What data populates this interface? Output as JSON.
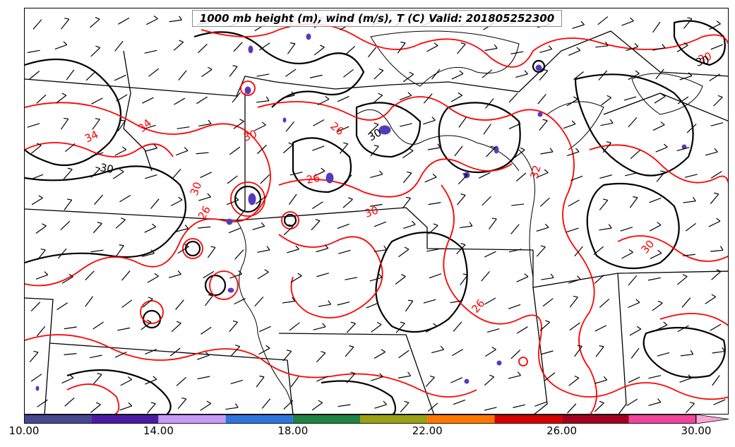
{
  "title": "1000 mb height (m), wind (m/s), T (C) Valid: 201805252300",
  "contour_labels": {
    "temperature": [
      "34",
      "34",
      "30",
      "30",
      "26",
      "26",
      "30",
      "26",
      "32",
      "30",
      "26",
      "30"
    ],
    "height": [
      "30",
      "30",
      "30"
    ]
  },
  "colors": {
    "height_contour": "#000000",
    "temperature_contour": "#ff0000",
    "boundaries": "#000000",
    "storm_cells": "#4b3fb5"
  },
  "colorbar": {
    "min": 10.0,
    "max": 30.0,
    "extend": "max",
    "tick_labels": [
      "10.00",
      "14.00",
      "18.00",
      "22.00",
      "26.00",
      "30.00"
    ],
    "segments": [
      {
        "from": 10,
        "to": 12,
        "color": "#46478f"
      },
      {
        "from": 12,
        "to": 14,
        "color": "#4c1aa3"
      },
      {
        "from": 14,
        "to": 16,
        "color": "#c89af7"
      },
      {
        "from": 16,
        "to": 18,
        "color": "#2f74dc"
      },
      {
        "from": 18,
        "to": 20,
        "color": "#1e8243"
      },
      {
        "from": 20,
        "to": 22,
        "color": "#9aa114"
      },
      {
        "from": 22,
        "to": 24,
        "color": "#ff7700"
      },
      {
        "from": 24,
        "to": 26,
        "color": "#d40000"
      },
      {
        "from": 26,
        "to": 28,
        "color": "#a3001f"
      },
      {
        "from": 28,
        "to": 30,
        "color": "#f0449e"
      },
      {
        "from": 30,
        "to": 32,
        "color": "#f7a5d6"
      }
    ]
  }
}
